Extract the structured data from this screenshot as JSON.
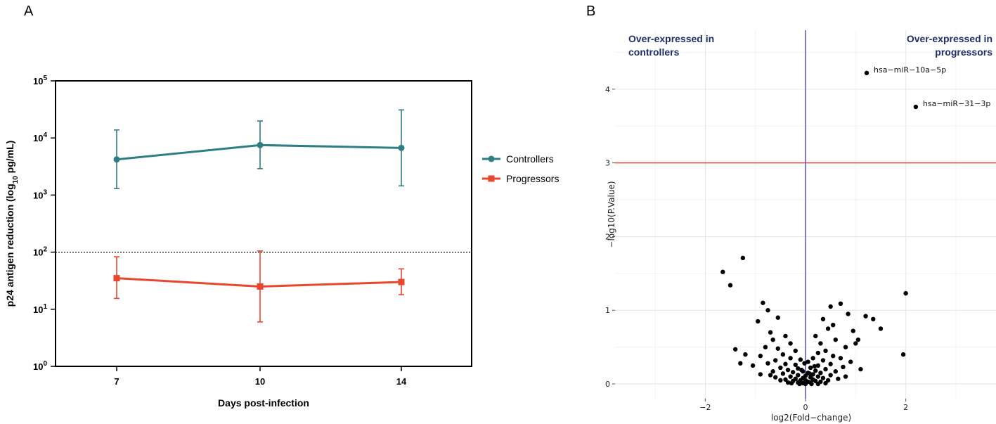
{
  "chart_data": [
    {
      "panel": "A",
      "type": "line",
      "xlabel": "Days post-infection",
      "ylabel": "p24 antigen reduction (log10 pg/mL)",
      "ylabel_parts": {
        "main": "p24 antigen reduction (log",
        "sub": "10",
        "tail": " pg/mL)"
      },
      "yscale": "log",
      "ylim": [
        1,
        100000
      ],
      "categories": [
        "7",
        "10",
        "14"
      ],
      "y_ticks": [
        {
          "base": "10",
          "exp": "0",
          "value": 1
        },
        {
          "base": "10",
          "exp": "1",
          "value": 10
        },
        {
          "base": "10",
          "exp": "2",
          "value": 100
        },
        {
          "base": "10",
          "exp": "3",
          "value": 1000
        },
        {
          "base": "10",
          "exp": "4",
          "value": 10000
        },
        {
          "base": "10",
          "exp": "5",
          "value": 100000
        }
      ],
      "reference_line": {
        "y": 100,
        "style": "dotted"
      },
      "legend_position": "right",
      "series": [
        {
          "name": "Controllers",
          "color": "#2e7f84",
          "marker": "circle",
          "values": [
            4200,
            7500,
            6700
          ],
          "err_low": [
            1300,
            2900,
            1450
          ],
          "err_high": [
            13800,
            19800,
            31000
          ]
        },
        {
          "name": "Progressors",
          "color": "#e8472e",
          "marker": "square",
          "values": [
            35,
            25,
            30
          ],
          "err_low": [
            15.5,
            6,
            18
          ],
          "err_high": [
            83,
            105,
            51
          ]
        }
      ]
    },
    {
      "panel": "B",
      "type": "scatter",
      "xlabel": "log2(Fold−change)",
      "ylabel": "−log10(P.Value)",
      "xlim": [
        -3.8,
        3.8
      ],
      "ylim": [
        -0.2,
        4.8
      ],
      "x_ticks": [
        {
          "label": "−2",
          "value": -2
        },
        {
          "label": "0",
          "value": 0
        },
        {
          "label": "2",
          "value": 2
        }
      ],
      "y_ticks": [
        {
          "label": "0",
          "value": 0
        },
        {
          "label": "1",
          "value": 1
        },
        {
          "label": "2",
          "value": 2
        },
        {
          "label": "3",
          "value": 3
        },
        {
          "label": "4",
          "value": 4
        }
      ],
      "grid": true,
      "threshold_line": {
        "y": 3,
        "color": "#e84a3c"
      },
      "vertical_line": {
        "x": 0,
        "color": "#5a4fbf"
      },
      "annotations": {
        "left": [
          "Over-expressed in",
          "controllers"
        ],
        "right": [
          "Over-expressed in",
          "progressors"
        ]
      },
      "labeled_points": [
        {
          "x": 1.22,
          "y": 4.22,
          "label": "hsa−miR−10a−5p"
        },
        {
          "x": 2.2,
          "y": 3.76,
          "label": "hsa−miR−31−3p"
        }
      ],
      "points": [
        [
          -1.25,
          1.71
        ],
        [
          -1.65,
          1.52
        ],
        [
          -1.5,
          1.34
        ],
        [
          2.0,
          1.23
        ],
        [
          -0.85,
          1.1
        ],
        [
          0.7,
          1.09
        ],
        [
          0.5,
          1.05
        ],
        [
          -0.75,
          1.0
        ],
        [
          0.85,
          0.95
        ],
        [
          1.2,
          0.92
        ],
        [
          -0.55,
          0.9
        ],
        [
          0.35,
          0.88
        ],
        [
          1.35,
          0.88
        ],
        [
          -0.95,
          0.85
        ],
        [
          0.55,
          0.8
        ],
        [
          1.5,
          0.75
        ],
        [
          0.45,
          0.75
        ],
        [
          -0.7,
          0.7
        ],
        [
          0.95,
          0.72
        ],
        [
          -0.4,
          0.65
        ],
        [
          0.2,
          0.65
        ],
        [
          -0.65,
          0.6
        ],
        [
          0.6,
          0.6
        ],
        [
          1.05,
          0.6
        ],
        [
          -0.3,
          0.55
        ],
        [
          0.3,
          0.55
        ],
        [
          -0.8,
          0.5
        ],
        [
          -1.4,
          0.47
        ],
        [
          0.8,
          0.5
        ],
        [
          -0.55,
          0.48
        ],
        [
          0.4,
          0.45
        ],
        [
          -0.2,
          0.45
        ],
        [
          0.25,
          0.42
        ],
        [
          1.95,
          0.4
        ],
        [
          -1.2,
          0.4
        ],
        [
          -0.45,
          0.4
        ],
        [
          0.55,
          0.38
        ],
        [
          -0.9,
          0.38
        ],
        [
          0.7,
          0.35
        ],
        [
          -0.3,
          0.35
        ],
        [
          0.15,
          0.35
        ],
        [
          -0.1,
          0.33
        ],
        [
          0.35,
          0.32
        ],
        [
          -0.6,
          0.32
        ],
        [
          0.9,
          0.3
        ],
        [
          -1.3,
          0.28
        ],
        [
          -0.75,
          0.28
        ],
        [
          0.05,
          0.3
        ],
        [
          -0.4,
          0.27
        ],
        [
          0.5,
          0.27
        ],
        [
          -0.2,
          0.26
        ],
        [
          0.25,
          0.25
        ],
        [
          -1.05,
          0.25
        ],
        [
          0.75,
          0.23
        ],
        [
          -0.5,
          0.22
        ],
        [
          0.1,
          0.22
        ],
        [
          -0.15,
          0.21
        ],
        [
          0.4,
          0.2
        ],
        [
          1.1,
          0.2
        ],
        [
          -0.35,
          0.19
        ],
        [
          0.2,
          0.18
        ],
        [
          -0.65,
          0.17
        ],
        [
          0.6,
          0.17
        ],
        [
          -0.05,
          0.17
        ],
        [
          -0.25,
          0.16
        ],
        [
          0.3,
          0.15
        ],
        [
          0.05,
          0.15
        ],
        [
          -0.45,
          0.14
        ],
        [
          0.15,
          0.13
        ],
        [
          -0.9,
          0.13
        ],
        [
          0.5,
          0.12
        ],
        [
          -0.15,
          0.12
        ],
        [
          0.0,
          0.11
        ],
        [
          -0.3,
          0.1
        ],
        [
          0.25,
          0.1
        ],
        [
          -0.6,
          0.09
        ],
        [
          0.1,
          0.09
        ],
        [
          -0.05,
          0.08
        ],
        [
          0.35,
          0.08
        ],
        [
          0.65,
          0.07
        ],
        [
          -0.2,
          0.07
        ],
        [
          0.15,
          0.06
        ],
        [
          -0.4,
          0.06
        ],
        [
          0.0,
          0.05
        ],
        [
          -0.1,
          0.05
        ],
        [
          0.2,
          0.04
        ],
        [
          -0.25,
          0.04
        ],
        [
          0.05,
          0.03
        ],
        [
          0.3,
          0.03
        ],
        [
          -0.15,
          0.02
        ],
        [
          0.1,
          0.02
        ],
        [
          -0.05,
          0.01
        ],
        [
          0.4,
          0.01
        ],
        [
          -0.35,
          0.02
        ],
        [
          0.0,
          0.0
        ],
        [
          0.12,
          0.0
        ],
        [
          -0.12,
          0.0
        ],
        [
          0.25,
          0.0
        ],
        [
          -0.28,
          0.01
        ],
        [
          0.08,
          0.14
        ],
        [
          -0.08,
          0.19
        ],
        [
          0.18,
          0.24
        ],
        [
          -0.02,
          0.28
        ],
        [
          -0.5,
          0.05
        ],
        [
          0.45,
          0.05
        ],
        [
          -0.7,
          0.12
        ],
        [
          0.8,
          0.1
        ],
        [
          1.0,
          0.55
        ]
      ]
    }
  ]
}
